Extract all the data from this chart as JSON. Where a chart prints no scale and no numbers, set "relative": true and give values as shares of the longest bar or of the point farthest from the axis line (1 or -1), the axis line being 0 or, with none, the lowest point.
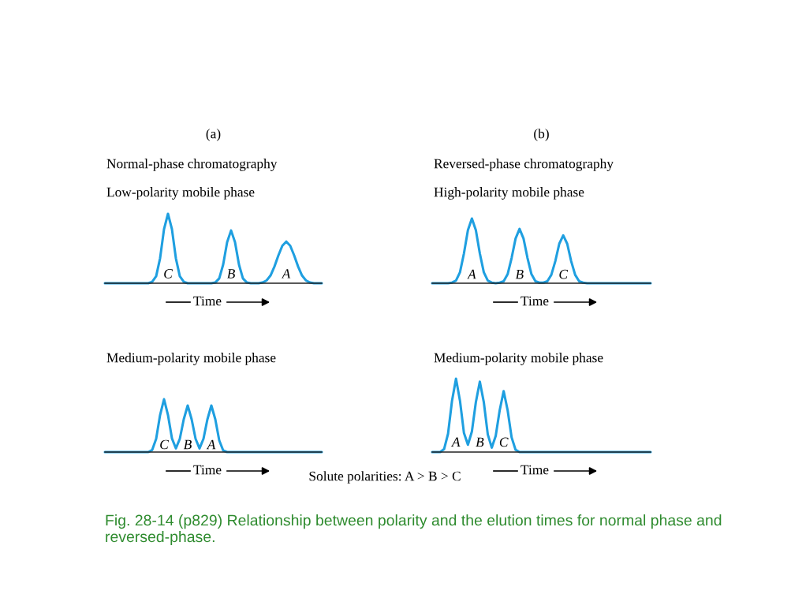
{
  "chart_data": [
    {
      "type": "line",
      "relative": true,
      "title": "(a)",
      "subtitle": "Normal-phase chromatography",
      "xlabel": "Time",
      "categories": [
        null,
        null,
        null,
        null,
        null,
        null,
        null,
        null,
        null,
        null,
        null,
        null,
        null,
        null,
        null,
        null,
        null,
        null,
        null,
        null,
        null,
        null,
        null,
        null,
        null,
        null,
        null,
        null,
        null,
        null,
        null,
        null,
        null,
        null,
        null,
        null,
        null,
        null,
        null,
        null,
        null,
        null,
        null,
        null,
        null,
        null,
        null,
        null,
        null,
        null,
        null,
        null,
        null,
        null,
        null,
        null
      ],
      "series": [
        {
          "name": "Low-polarity mobile phase",
          "color": "#1f9fe0",
          "values": [
            0,
            0,
            0,
            0,
            0,
            0,
            0,
            0,
            0,
            0,
            0,
            0,
            0.02,
            0.1,
            0.36,
            0.78,
            1,
            0.78,
            0.36,
            0.1,
            0.02,
            0,
            0,
            0,
            0,
            0,
            0,
            0,
            0.01,
            0.07,
            0.27,
            0.59,
            0.76,
            0.59,
            0.27,
            0.07,
            0.01,
            0,
            0,
            0,
            0.01,
            0.04,
            0.11,
            0.24,
            0.4,
            0.54,
            0.6,
            0.54,
            0.4,
            0.24,
            0.11,
            0.04,
            0.01,
            0,
            0,
            0
          ]
        }
      ],
      "annotations": [
        "C",
        "B",
        "A"
      ]
    },
    {
      "type": "line",
      "relative": true,
      "title": "(b)",
      "subtitle": "Reversed-phase chromatography",
      "xlabel": "Time",
      "categories": [
        null,
        null,
        null,
        null,
        null,
        null,
        null,
        null,
        null,
        null,
        null,
        null,
        null,
        null,
        null,
        null,
        null,
        null,
        null,
        null,
        null,
        null,
        null,
        null,
        null,
        null,
        null,
        null,
        null,
        null,
        null,
        null,
        null,
        null,
        null,
        null,
        null,
        null,
        null,
        null,
        null,
        null,
        null,
        null,
        null,
        null,
        null,
        null,
        null,
        null,
        null,
        null,
        null,
        null,
        null,
        null
      ],
      "series": [
        {
          "name": "High-polarity mobile phase",
          "color": "#1f9fe0",
          "values": [
            0,
            0,
            0,
            0,
            0,
            0.01,
            0.04,
            0.17,
            0.46,
            0.82,
            1,
            0.82,
            0.46,
            0.17,
            0.04,
            0.01,
            0,
            0.01,
            0.03,
            0.14,
            0.39,
            0.69,
            0.84,
            0.69,
            0.39,
            0.14,
            0.03,
            0.01,
            0.01,
            0.03,
            0.13,
            0.34,
            0.61,
            0.74,
            0.61,
            0.34,
            0.13,
            0.03,
            0.01,
            0,
            0,
            0,
            0,
            0,
            0,
            0,
            0,
            0,
            0,
            0,
            0,
            0,
            0,
            0,
            0,
            0
          ]
        }
      ],
      "annotations": [
        "A",
        "B",
        "C"
      ]
    },
    {
      "type": "line",
      "relative": true,
      "xlabel": "Time",
      "categories": [
        null,
        null,
        null,
        null,
        null,
        null,
        null,
        null,
        null,
        null,
        null,
        null,
        null,
        null,
        null,
        null,
        null,
        null,
        null,
        null,
        null,
        null,
        null,
        null,
        null,
        null,
        null,
        null,
        null,
        null,
        null,
        null,
        null,
        null,
        null,
        null,
        null,
        null,
        null,
        null,
        null,
        null,
        null,
        null,
        null,
        null,
        null,
        null,
        null,
        null,
        null,
        null,
        null,
        null,
        null,
        null
      ],
      "series": [
        {
          "name": "Medium-polarity mobile phase",
          "color": "#1f9fe0",
          "values": [
            0,
            0,
            0,
            0,
            0,
            0,
            0,
            0,
            0,
            0,
            0,
            0,
            0.04,
            0.25,
            0.7,
            1,
            0.7,
            0.26,
            0.07,
            0.25,
            0.62,
            0.88,
            0.62,
            0.25,
            0.07,
            0.25,
            0.62,
            0.88,
            0.62,
            0.22,
            0.03,
            0,
            0,
            0,
            0,
            0,
            0,
            0,
            0,
            0,
            0,
            0,
            0,
            0,
            0,
            0,
            0,
            0,
            0,
            0,
            0,
            0,
            0,
            0,
            0,
            0
          ]
        }
      ],
      "annotations": [
        "C",
        "B",
        "A"
      ]
    },
    {
      "type": "line",
      "relative": true,
      "xlabel": "Time",
      "categories": [
        null,
        null,
        null,
        null,
        null,
        null,
        null,
        null,
        null,
        null,
        null,
        null,
        null,
        null,
        null,
        null,
        null,
        null,
        null,
        null,
        null,
        null,
        null,
        null,
        null,
        null,
        null,
        null,
        null,
        null,
        null,
        null,
        null,
        null,
        null,
        null,
        null,
        null,
        null,
        null,
        null,
        null,
        null,
        null,
        null,
        null,
        null,
        null,
        null,
        null,
        null,
        null,
        null,
        null,
        null,
        null
      ],
      "series": [
        {
          "name": "Medium-polarity mobile phase",
          "color": "#1f9fe0",
          "values": [
            0,
            0,
            0,
            0.04,
            0.25,
            0.7,
            1,
            0.7,
            0.26,
            0.1,
            0.28,
            0.68,
            0.96,
            0.68,
            0.24,
            0.06,
            0.22,
            0.57,
            0.83,
            0.57,
            0.2,
            0.03,
            0,
            0,
            0,
            0,
            0,
            0,
            0,
            0,
            0,
            0,
            0,
            0,
            0,
            0,
            0,
            0,
            0,
            0,
            0,
            0,
            0,
            0,
            0,
            0,
            0,
            0,
            0,
            0,
            0,
            0,
            0,
            0,
            0,
            0
          ]
        }
      ],
      "annotations": [
        "A",
        "B",
        "C",
        "Solute polarities: A > B > C",
        "Fig. 28-14 (p829) Relationship between polarity and the elution times for normal phase and reversed-phase."
      ]
    }
  ]
}
